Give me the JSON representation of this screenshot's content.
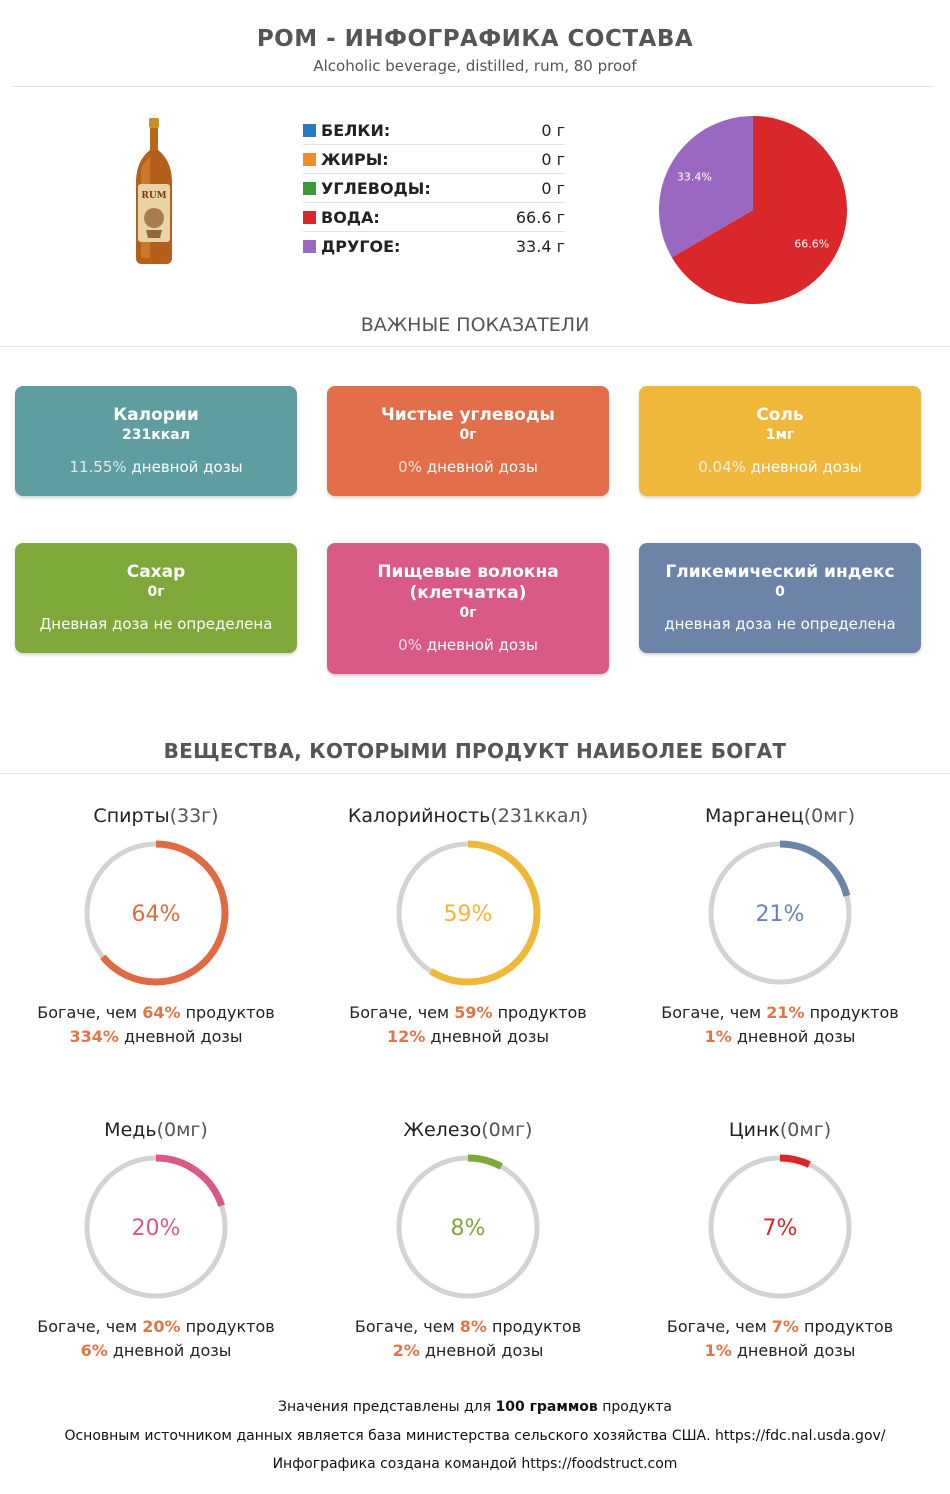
{
  "header": {
    "title": "РОМ - ИНФОГРАФИКА СОСТАВА",
    "subtitle": "Alcoholic beverage, distilled, rum, 80 proof"
  },
  "macros": [
    {
      "name": "БЕЛКИ:",
      "value": "0 г",
      "color": "#2a7abf"
    },
    {
      "name": "ЖИРЫ:",
      "value": "0 г",
      "color": "#f08b2c"
    },
    {
      "name": "УГЛЕВОДЫ:",
      "value": "0 г",
      "color": "#3a9a3a"
    },
    {
      "name": "ВОДА:",
      "value": "66.6 г",
      "color": "#d9272b"
    },
    {
      "name": "ДРУГОЕ:",
      "value": "33.4 г",
      "color": "#9a68c0"
    }
  ],
  "chart_data": {
    "type": "pie",
    "slices": [
      {
        "name": "ВОДА",
        "value": 66.6,
        "label": "66.6%",
        "color": "#d9272b"
      },
      {
        "name": "ДРУГОЕ",
        "value": 33.4,
        "label": "33.4%",
        "color": "#9a68c0"
      }
    ]
  },
  "section1": {
    "title": "ВАЖНЫЕ ПОКАЗАТЕЛИ"
  },
  "cards": [
    {
      "title": "Калории",
      "value": "231ккал",
      "pct": "11.55%",
      "daily": " дневной дозы",
      "color": "#5f9ea0"
    },
    {
      "title": "Чистые углеводы",
      "value": "0г",
      "pct": "0%",
      "daily": " дневной дозы",
      "color": "#e26e4a"
    },
    {
      "title": "Соль",
      "value": "1мг",
      "pct": "0.04%",
      "daily": " дневной дозы",
      "color": "#f0b83a"
    },
    {
      "title": "Сахар",
      "value": "0г",
      "pct": "",
      "daily": "Дневная доза не определена",
      "color": "#7fa83a"
    },
    {
      "title": "Пищевые волокна (клетчатка)",
      "value": "0г",
      "pct": "0%",
      "daily": " дневной дозы",
      "color": "#d95a86"
    },
    {
      "title": "Гликемический индекс",
      "value": "0",
      "pct": "",
      "daily": "дневная доза не определена",
      "color": "#6b84a8"
    }
  ],
  "section2": {
    "title": "ВЕЩЕСТВА, КОТОРЫМИ ПРОДУКТ НАИБОЛЕЕ БОГАТ"
  },
  "nutrients": [
    {
      "name": "Спирты",
      "amount": "(33г)",
      "percent": 64,
      "label": "64%",
      "color": "#e06a43",
      "rich_prefix": "Богаче, чем ",
      "rich_pct": "64%",
      "rich_suffix": " продуктов",
      "daily_pct": "334%",
      "daily_suffix": " дневной дозы"
    },
    {
      "name": "Калорийность",
      "amount": "(231ккал)",
      "percent": 59,
      "label": "59%",
      "color": "#f0b83a",
      "rich_prefix": "Богаче, чем ",
      "rich_pct": "59%",
      "rich_suffix": " продуктов",
      "daily_pct": "12%",
      "daily_suffix": " дневной дозы"
    },
    {
      "name": "Марганец",
      "amount": "(0мг)",
      "percent": 21,
      "label": "21%",
      "color": "#6b84a8",
      "rich_prefix": "Богаче, чем ",
      "rich_pct": "21%",
      "rich_suffix": " продуктов",
      "daily_pct": "1%",
      "daily_suffix": " дневной дозы"
    },
    {
      "name": "Медь",
      "amount": "(0мг)",
      "percent": 20,
      "label": "20%",
      "color": "#d95a86",
      "rich_prefix": "Богаче, чем ",
      "rich_pct": "20%",
      "rich_suffix": " продуктов",
      "daily_pct": "6%",
      "daily_suffix": " дневной дозы"
    },
    {
      "name": "Железо",
      "amount": "(0мг)",
      "percent": 8,
      "label": "8%",
      "color": "#7fa83a",
      "rich_prefix": "Богаче, чем ",
      "rich_pct": "8%",
      "rich_suffix": " продуктов",
      "daily_pct": "2%",
      "daily_suffix": " дневной дозы"
    },
    {
      "name": "Цинк",
      "amount": "(0мг)",
      "percent": 7,
      "label": "7%",
      "color": "#d9272b",
      "rich_prefix": "Богаче, чем ",
      "rich_pct": "7%",
      "rich_suffix": " продуктов",
      "daily_pct": "1%",
      "daily_suffix": " дневной дозы"
    }
  ],
  "footer": {
    "line1_a": "Значения представлены для ",
    "line1_b": "100 ",
    "line1_c": "граммов",
    "line1_d": " продукта",
    "line2": "Основным источником данных является база министерства сельского хозяйства США. https://fdc.nal.usda.gov/",
    "line3": "Инфографика создана командой https://foodstruct.com"
  },
  "bottle_label": "RUM"
}
